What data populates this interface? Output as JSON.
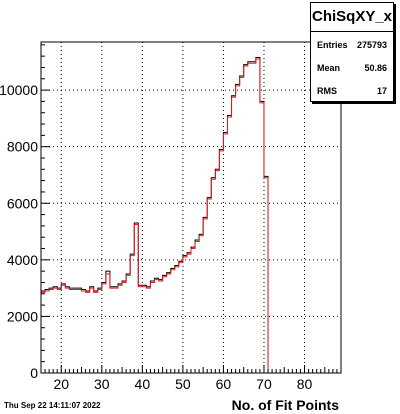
{
  "stats": {
    "title": "ChiSqXY_x",
    "rows": [
      {
        "key": "Entries",
        "value": "275793"
      },
      {
        "key": "Mean",
        "value": "50.86"
      },
      {
        "key": "RMS",
        "value": "17"
      }
    ]
  },
  "timestamp": "Thu Sep 22 14:11:07 2022",
  "chart_data": {
    "type": "histogram",
    "title": "ChiSqXY_x",
    "xlabel": "No. of Fit Points",
    "ylabel": "",
    "xlim": [
      15,
      89
    ],
    "ylim": [
      0,
      11700
    ],
    "xticks": [
      20,
      30,
      40,
      50,
      60,
      70,
      80
    ],
    "yticks": [
      0,
      2000,
      4000,
      6000,
      8000,
      10000
    ],
    "ytick_labels": [
      "0",
      "2000",
      "4000",
      "6000",
      "8000",
      "10000"
    ],
    "grid": true,
    "bin_width": 1,
    "bin_edges_start": 15,
    "series": [
      {
        "color": "#000000",
        "values": [
          2900,
          2950,
          3000,
          3050,
          3000,
          3150,
          3050,
          3000,
          3000,
          3000,
          2950,
          2900,
          3050,
          2900,
          3000,
          3200,
          3600,
          3050,
          3050,
          3150,
          3250,
          3500,
          4200,
          5300,
          3100,
          3100,
          3050,
          3250,
          3350,
          3300,
          3450,
          3550,
          3700,
          3800,
          3950,
          4150,
          4250,
          4450,
          4700,
          4900,
          5500,
          6200,
          6900,
          7200,
          7900,
          8500,
          9100,
          9800,
          10200,
          10500,
          10900,
          11000,
          11000,
          11150,
          9600,
          6950,
          0,
          0,
          0,
          0,
          0,
          0,
          0,
          0,
          0,
          0,
          0,
          0,
          0,
          0,
          0,
          0,
          0,
          0
        ]
      },
      {
        "color": "#e41a1c",
        "values": [
          2850,
          2900,
          2950,
          3000,
          2950,
          3100,
          3000,
          2950,
          2950,
          2950,
          2900,
          2850,
          3000,
          2850,
          2950,
          3150,
          3500,
          3000,
          3000,
          3100,
          3200,
          3450,
          4150,
          5250,
          3050,
          3050,
          3000,
          3200,
          3300,
          3250,
          3400,
          3500,
          3650,
          3750,
          3900,
          4100,
          4200,
          4400,
          4650,
          4850,
          5450,
          6150,
          6850,
          7150,
          7850,
          8450,
          9050,
          9750,
          10150,
          10450,
          10850,
          10950,
          10950,
          11100,
          9550,
          6900,
          0,
          0,
          0,
          0,
          0,
          0,
          0,
          0,
          0,
          0,
          0,
          0,
          0,
          0,
          0,
          0,
          0,
          0
        ]
      }
    ],
    "annotations": [
      {
        "text": "ChiSqXY_x"
      }
    ]
  }
}
